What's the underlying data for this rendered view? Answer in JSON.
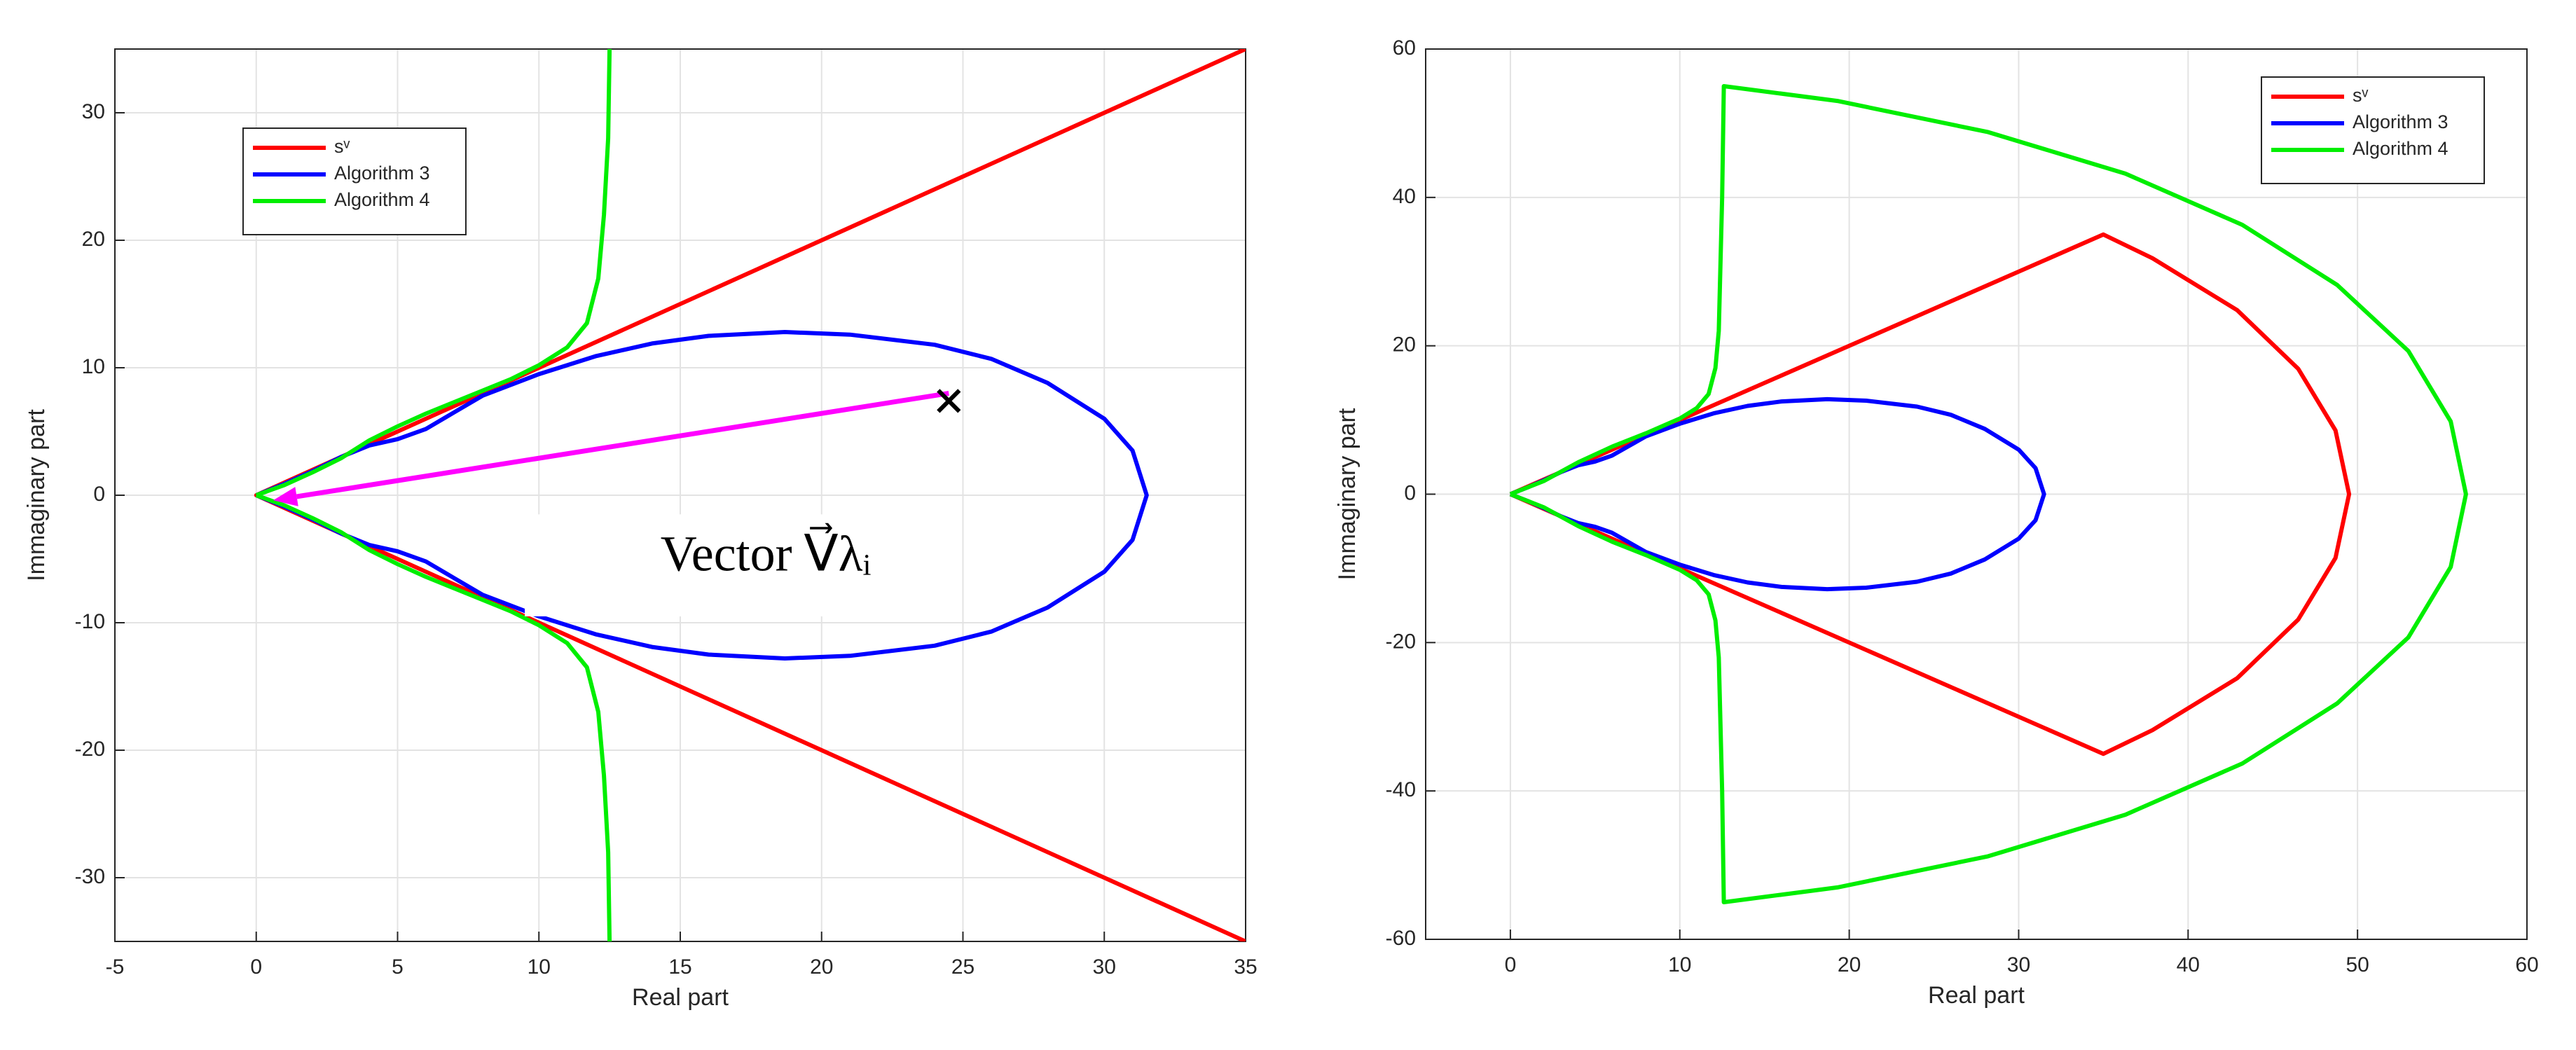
{
  "chart_data": [
    {
      "type": "line",
      "xlabel": "Real part",
      "ylabel": "Immaginary part",
      "xlim": [
        -5,
        35
      ],
      "ylim": [
        -35,
        35
      ],
      "xticks": [
        -5,
        0,
        5,
        10,
        15,
        20,
        25,
        30,
        35
      ],
      "yticks": [
        -30,
        -20,
        -10,
        0,
        10,
        20,
        30
      ],
      "grid": true,
      "legend": "upper left",
      "series": [
        {
          "name": "sᵛ",
          "color": "#ff0000",
          "x": [
            35,
            0,
            35
          ],
          "y": [
            35,
            0,
            -35
          ]
        },
        {
          "name": "Algorithm 3",
          "color": "#0000ff",
          "x": [
            0,
            1,
            2,
            3,
            4,
            5,
            6,
            7,
            8,
            10,
            12,
            14,
            16,
            18.7,
            21,
            24,
            26,
            28,
            30,
            31,
            31.5,
            31,
            30,
            28,
            26,
            24,
            21,
            18.7,
            16,
            14,
            12,
            10,
            8,
            7,
            6,
            5,
            4,
            3,
            2,
            1,
            0
          ],
          "y": [
            0,
            0.9,
            1.9,
            3,
            3.9,
            4.4,
            5.2,
            6.5,
            7.8,
            9.5,
            10.9,
            11.9,
            12.5,
            12.8,
            12.6,
            11.8,
            10.7,
            8.8,
            6,
            3.5,
            0,
            -3.5,
            -6,
            -8.8,
            -10.7,
            -11.8,
            -12.6,
            -12.8,
            -12.5,
            -11.9,
            -10.9,
            -9.5,
            -7.8,
            -6.5,
            -5.2,
            -4.4,
            -3.9,
            -3,
            -1.9,
            -0.9,
            0
          ]
        },
        {
          "name": "Algorithm 4",
          "color": "#00ee00",
          "x": [
            0,
            1,
            2,
            3,
            4,
            5,
            6,
            7,
            8,
            9,
            10,
            11,
            11.7,
            12.1,
            12.3,
            12.45,
            12.5,
            null,
            0,
            1,
            2,
            3,
            4,
            5,
            6,
            7,
            8,
            9,
            10,
            11,
            11.7,
            12.1,
            12.3,
            12.45,
            12.5
          ],
          "y": [
            0,
            0.8,
            1.8,
            2.9,
            4.3,
            5.4,
            6.4,
            7.3,
            8.2,
            9.1,
            10.2,
            11.6,
            13.5,
            17,
            22,
            28,
            35,
            null,
            0,
            -0.8,
            -1.8,
            -2.9,
            -4.3,
            -5.4,
            -6.4,
            -7.3,
            -8.2,
            -9.1,
            -10.2,
            -11.6,
            -13.5,
            -17,
            -22,
            -28,
            -35
          ]
        }
      ],
      "arrow": {
        "x": [
          24.5,
          0.6
        ],
        "y": [
          8,
          -0.4
        ],
        "color": "#ff00ff"
      },
      "marker": {
        "x": 24.5,
        "y": 7.4
      },
      "annotation": "Vector V⃗λᵢ"
    },
    {
      "type": "line",
      "xlabel": "Real part",
      "ylabel": "Immaginary part",
      "xlim": [
        -5,
        60
      ],
      "ylim": [
        -60,
        60
      ],
      "xticks": [
        0,
        10,
        20,
        30,
        40,
        50,
        60
      ],
      "yticks": [
        -60,
        -40,
        -20,
        0,
        20,
        40,
        60
      ],
      "grid": true,
      "legend": "upper right",
      "series": [
        {
          "name": "sᵛ",
          "color": "#ff0000",
          "x": [
            0,
            35,
            37.9,
            42.9,
            46.5,
            48.7,
            49.5,
            48.7,
            46.5,
            42.9,
            37.9,
            35,
            0
          ],
          "y": [
            0,
            35,
            31.8,
            24.8,
            16.9,
            8.6,
            0,
            -8.6,
            -16.9,
            -24.8,
            -31.8,
            -35,
            0
          ]
        },
        {
          "name": "Algorithm 3",
          "color": "#0000ff",
          "x": [
            0,
            1,
            2,
            3,
            4,
            5,
            6,
            7,
            8,
            10,
            12,
            14,
            16,
            18.7,
            21,
            24,
            26,
            28,
            30,
            31,
            31.5,
            31,
            30,
            28,
            26,
            24,
            21,
            18.7,
            16,
            14,
            12,
            10,
            8,
            7,
            6,
            5,
            4,
            3,
            2,
            1,
            0
          ],
          "y": [
            0,
            0.9,
            1.9,
            3,
            3.9,
            4.4,
            5.2,
            6.5,
            7.8,
            9.5,
            10.9,
            11.9,
            12.5,
            12.8,
            12.6,
            11.8,
            10.7,
            8.8,
            6,
            3.5,
            0,
            -3.5,
            -6,
            -8.8,
            -10.7,
            -11.8,
            -12.6,
            -12.8,
            -12.5,
            -11.9,
            -10.9,
            -9.5,
            -7.8,
            -6.5,
            -5.2,
            -4.4,
            -3.9,
            -3,
            -1.9,
            -0.9,
            0
          ]
        },
        {
          "name": "Algorithm 4",
          "color": "#00ee00",
          "x": [
            0,
            2,
            4,
            6,
            8,
            10,
            11,
            11.7,
            12.1,
            12.3,
            12.5,
            12.6,
            19.3,
            28.2,
            36.3,
            43.2,
            48.8,
            53,
            55.5,
            56.4,
            55.5,
            53,
            48.8,
            43.2,
            36.3,
            28.2,
            19.3,
            12.6,
            12.5,
            12.3,
            12.1,
            11.7,
            11,
            10,
            8,
            6,
            4,
            2,
            0
          ],
          "y": [
            0,
            1.8,
            4.3,
            6.4,
            8.2,
            10.2,
            11.6,
            13.5,
            17,
            22,
            40,
            55,
            53,
            48.8,
            43.2,
            36.3,
            28.2,
            19.3,
            9.8,
            0,
            -9.8,
            -19.3,
            -28.2,
            -36.3,
            -43.2,
            -48.8,
            -53,
            -55,
            -40,
            -22,
            -17,
            -13.5,
            -11.6,
            -10.2,
            -8.2,
            -6.4,
            -4.3,
            -1.8,
            0
          ]
        }
      ]
    }
  ]
}
